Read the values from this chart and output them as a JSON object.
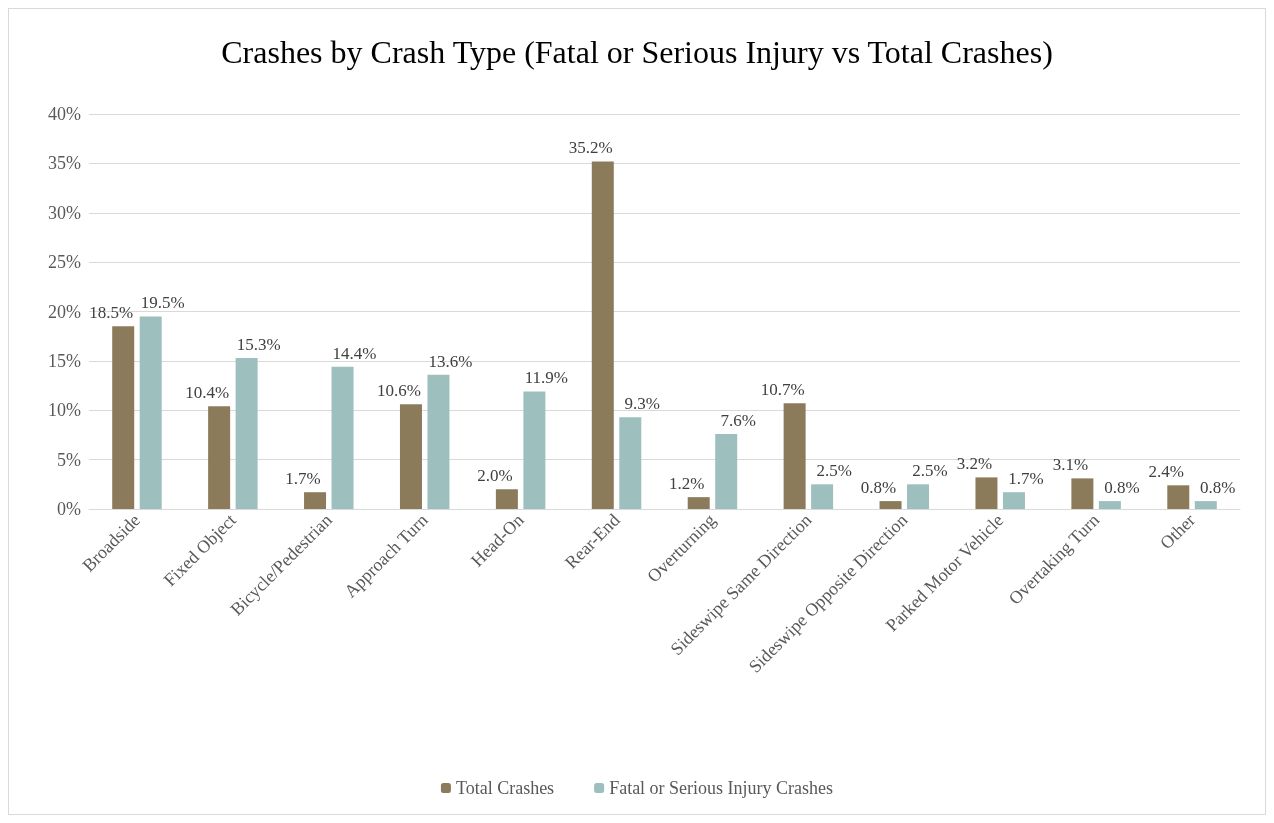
{
  "chart_data": {
    "type": "bar",
    "title": "Crashes by Crash Type (Fatal or Serious Injury vs Total Crashes)",
    "categories": [
      "Broadside",
      "Fixed Object",
      "Bicycle/Pedestrian",
      "Approach Turn",
      "Head-On",
      "Rear-End",
      "Overturning",
      "Sideswipe Same Direction",
      "Sideswipe Opposite Direction",
      "Parked Motor Vehicle",
      "Overtaking Turn",
      "Other"
    ],
    "series": [
      {
        "name": "Total Crashes",
        "color": "#8b7b5b",
        "values": [
          18.5,
          10.4,
          1.7,
          10.6,
          2.0,
          35.2,
          1.2,
          10.7,
          0.8,
          3.2,
          3.1,
          2.4
        ],
        "value_labels": [
          "18.5%",
          "10.4%",
          "1.7%",
          "10.6%",
          "2.0%",
          "35.2%",
          "1.2%",
          "10.7%",
          "0.8%",
          "3.2%",
          "3.1%",
          "2.4%"
        ]
      },
      {
        "name": "Fatal or Serious Injury Crashes",
        "color": "#9dbfbd",
        "values": [
          19.5,
          15.3,
          14.4,
          13.6,
          11.9,
          9.3,
          7.6,
          2.5,
          2.5,
          1.7,
          0.8,
          0.8
        ],
        "value_labels": [
          "19.5%",
          "15.3%",
          "14.4%",
          "13.6%",
          "11.9%",
          "9.3%",
          "7.6%",
          "2.5%",
          "2.5%",
          "1.7%",
          "0.8%",
          "0.8%"
        ]
      }
    ],
    "ylim": [
      0,
      40
    ],
    "yticks": [
      {
        "value": 0,
        "label": "0%"
      },
      {
        "value": 5,
        "label": "5%"
      },
      {
        "value": 10,
        "label": "10%"
      },
      {
        "value": 15,
        "label": "15%"
      },
      {
        "value": 20,
        "label": "20%"
      },
      {
        "value": 25,
        "label": "25%"
      },
      {
        "value": 30,
        "label": "30%"
      },
      {
        "value": 35,
        "label": "35%"
      },
      {
        "value": 40,
        "label": "40%"
      }
    ],
    "grid": "y",
    "legend": "bottom"
  }
}
